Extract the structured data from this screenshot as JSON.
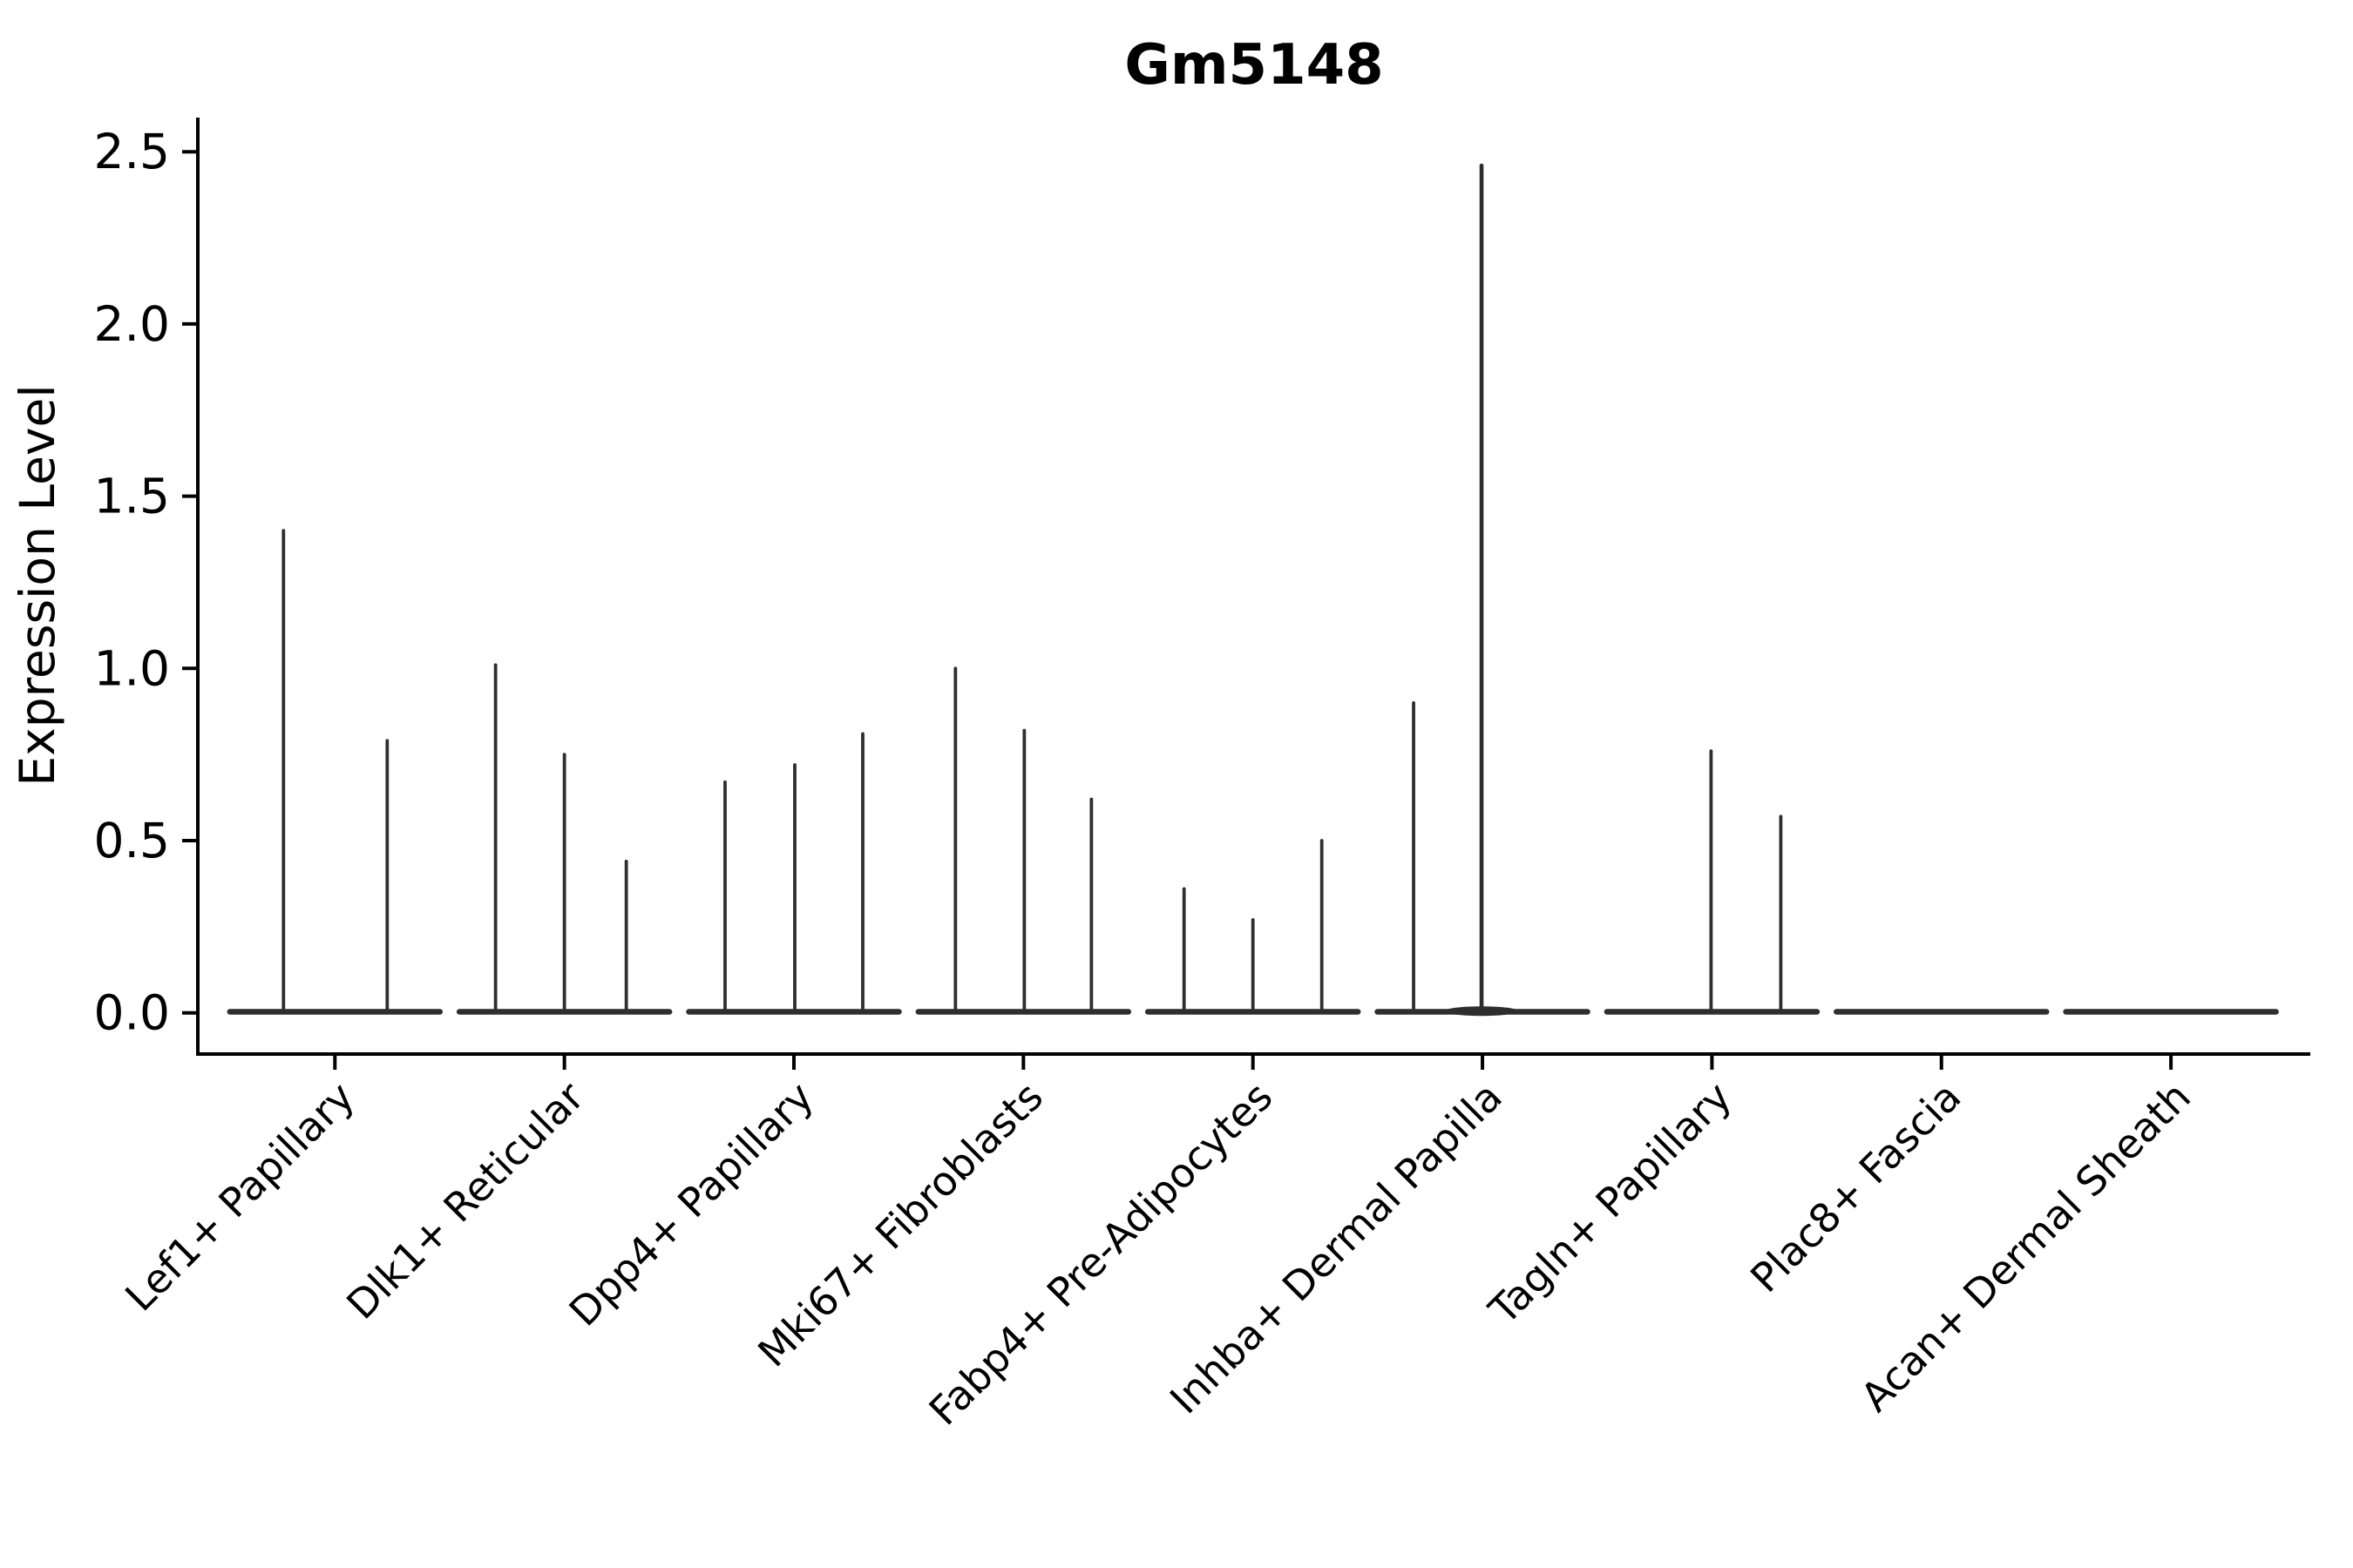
{
  "colors": {
    "background": "#ffffff",
    "violin_line": "#2e2e2e",
    "axis": "#000000",
    "text": "#000000"
  },
  "chart_data": {
    "type": "violin",
    "title": "Gm5148",
    "xlabel": "",
    "ylabel": "Expression Level",
    "ylim": [
      -0.12,
      2.6
    ],
    "grid": false,
    "legend": null,
    "yticks": [
      "0.0",
      "0.5",
      "1.0",
      "1.5",
      "2.0",
      "2.5"
    ],
    "categories": [
      "Lef1+ Papillary",
      "Dlk1+ Reticular",
      "Dpp4+ Papillary",
      "Mki67+ Fibroblasts",
      "Fabp4+ Pre-Adipocytes",
      "Inhba+ Dermal Papilla",
      "Tagln+ Papillary",
      "Plac8+ Fascia",
      "Acan+ Dermal Sheath"
    ],
    "groups": [
      {
        "category": "Lef1+ Papillary",
        "violins": [
          {
            "dx": -59,
            "max": 1.4
          },
          {
            "dx": 60,
            "max": 0.79
          }
        ]
      },
      {
        "category": "Dlk1+ Reticular",
        "violins": [
          {
            "dx": -79,
            "max": 1.01
          },
          {
            "dx": 0,
            "max": 0.75
          },
          {
            "dx": 71,
            "max": 0.44
          }
        ]
      },
      {
        "category": "Dpp4+ Papillary",
        "violins": [
          {
            "dx": -79,
            "max": 0.67
          },
          {
            "dx": 1,
            "max": 0.72
          },
          {
            "dx": 79,
            "max": 0.81
          }
        ]
      },
      {
        "category": "Mki67+ Fibroblasts",
        "violins": [
          {
            "dx": -78,
            "max": 1.0
          },
          {
            "dx": 1,
            "max": 0.82
          },
          {
            "dx": 78,
            "max": 0.62
          }
        ]
      },
      {
        "category": "Fabp4+ Pre-Adipocytes",
        "violins": [
          {
            "dx": -79,
            "max": 0.36
          },
          {
            "dx": 0,
            "max": 0.27
          },
          {
            "dx": 79,
            "max": 0.5
          }
        ]
      },
      {
        "category": "Inhba+ Dermal Papilla",
        "violins": [
          {
            "dx": -79,
            "max": 0.9
          },
          {
            "dx": -1,
            "max": 2.46,
            "bulge": true
          },
          {
            "dx": 79,
            "max": 0.0
          }
        ]
      },
      {
        "category": "Tagln+ Papillary",
        "violins": [
          {
            "dx": -79,
            "max": 0.0
          },
          {
            "dx": -1,
            "max": 0.76
          },
          {
            "dx": 79,
            "max": 0.57
          }
        ]
      },
      {
        "category": "Plac8+ Fascia",
        "violins": []
      },
      {
        "category": "Acan+ Dermal Sheath",
        "violins": []
      }
    ]
  }
}
